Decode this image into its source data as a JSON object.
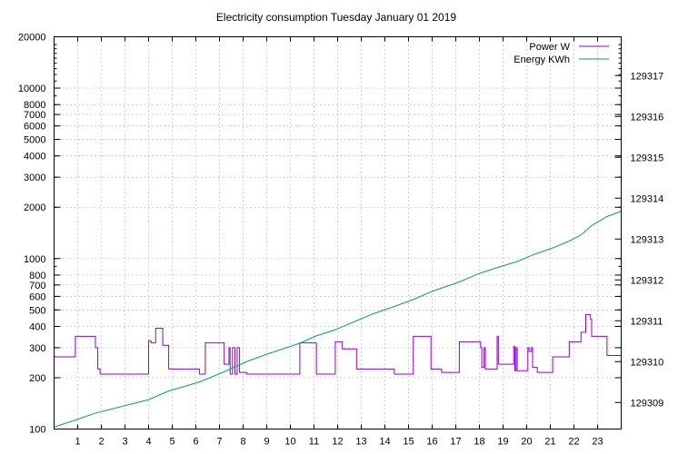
{
  "chart_data": {
    "type": "line",
    "title": "Electricity consumption Tuesday January 01 2019",
    "x": {
      "range": [
        0,
        24
      ],
      "tick_values": [
        1,
        2,
        3,
        4,
        5,
        6,
        7,
        8,
        9,
        10,
        11,
        12,
        13,
        14,
        15,
        16,
        17,
        18,
        19,
        20,
        21,
        22,
        23
      ],
      "tick_labels": [
        "1",
        "2",
        "3",
        "4",
        "5",
        "6",
        "7",
        "8",
        "9",
        "10",
        "11",
        "12",
        "13",
        "14",
        "15",
        "16",
        "17",
        "18",
        "19",
        "20",
        "21",
        "22",
        "23"
      ],
      "grid": true
    },
    "y_left": {
      "scale": "log",
      "range": [
        100,
        20000
      ],
      "tick_values": [
        100,
        200,
        300,
        400,
        500,
        600,
        700,
        800,
        1000,
        2000,
        3000,
        4000,
        5000,
        6000,
        7000,
        8000,
        10000,
        20000
      ],
      "tick_labels": [
        "100",
        "200",
        "300",
        "400",
        "500",
        "600",
        "700",
        "800",
        "1000",
        "2000",
        "3000",
        "4000",
        "5000",
        "6000",
        "7000",
        "8000",
        "10000",
        "20000"
      ],
      "grid": true
    },
    "y_right": {
      "scale": "linear",
      "range": [
        129308.35,
        129317.95
      ],
      "tick_values": [
        129309,
        129310,
        129311,
        129312,
        129313,
        129314,
        129315,
        129316,
        129317
      ],
      "tick_labels": [
        "129309",
        "129310",
        "129311",
        "129312",
        "129313",
        "129314",
        "129315",
        "129316",
        "129317"
      ]
    },
    "legend_position": "top-right",
    "series": [
      {
        "name": "Power W",
        "axis": "left",
        "color": "#9400d3",
        "style": "step",
        "points": [
          [
            0,
            270
          ],
          [
            0.05,
            265
          ],
          [
            0.9,
            265
          ],
          [
            0.9,
            350
          ],
          [
            1.75,
            350
          ],
          [
            1.75,
            300
          ],
          [
            1.85,
            300
          ],
          [
            1.85,
            225
          ],
          [
            1.95,
            225
          ],
          [
            1.95,
            210
          ],
          [
            4.0,
            210
          ],
          [
            4.0,
            330
          ],
          [
            4.1,
            330
          ],
          [
            4.1,
            320
          ],
          [
            4.3,
            320
          ],
          [
            4.3,
            390
          ],
          [
            4.6,
            390
          ],
          [
            4.6,
            310
          ],
          [
            4.85,
            310
          ],
          [
            4.85,
            225
          ],
          [
            6.15,
            225
          ],
          [
            6.15,
            210
          ],
          [
            6.4,
            210
          ],
          [
            6.4,
            320
          ],
          [
            7.2,
            320
          ],
          [
            7.2,
            240
          ],
          [
            7.4,
            240
          ],
          [
            7.4,
            300
          ],
          [
            7.45,
            300
          ],
          [
            7.45,
            210
          ],
          [
            7.55,
            210
          ],
          [
            7.55,
            300
          ],
          [
            7.65,
            300
          ],
          [
            7.65,
            210
          ],
          [
            7.75,
            210
          ],
          [
            7.75,
            300
          ],
          [
            7.85,
            300
          ],
          [
            7.85,
            215
          ],
          [
            8.15,
            215
          ],
          [
            8.15,
            210
          ],
          [
            10.4,
            210
          ],
          [
            10.4,
            320
          ],
          [
            11.1,
            320
          ],
          [
            11.1,
            210
          ],
          [
            11.9,
            210
          ],
          [
            11.9,
            325
          ],
          [
            12.2,
            325
          ],
          [
            12.2,
            295
          ],
          [
            12.8,
            295
          ],
          [
            12.8,
            225
          ],
          [
            14.4,
            225
          ],
          [
            14.4,
            210
          ],
          [
            15.2,
            210
          ],
          [
            15.2,
            350
          ],
          [
            15.95,
            350
          ],
          [
            15.95,
            225
          ],
          [
            16.4,
            225
          ],
          [
            16.4,
            215
          ],
          [
            17.15,
            215
          ],
          [
            17.15,
            325
          ],
          [
            18.05,
            325
          ],
          [
            18.05,
            300
          ],
          [
            18.1,
            300
          ],
          [
            18.1,
            230
          ],
          [
            18.2,
            230
          ],
          [
            18.2,
            300
          ],
          [
            18.25,
            300
          ],
          [
            18.25,
            225
          ],
          [
            18.75,
            225
          ],
          [
            18.75,
            350
          ],
          [
            18.8,
            350
          ],
          [
            18.8,
            240
          ],
          [
            19.45,
            240
          ],
          [
            19.45,
            305
          ],
          [
            19.5,
            305
          ],
          [
            19.5,
            220
          ],
          [
            19.55,
            220
          ],
          [
            19.55,
            300
          ],
          [
            19.6,
            300
          ],
          [
            19.6,
            220
          ],
          [
            20.05,
            220
          ],
          [
            20.05,
            300
          ],
          [
            20.1,
            300
          ],
          [
            20.1,
            285
          ],
          [
            20.2,
            285
          ],
          [
            20.2,
            300
          ],
          [
            20.25,
            300
          ],
          [
            20.25,
            230
          ],
          [
            20.45,
            230
          ],
          [
            20.45,
            215
          ],
          [
            21.1,
            215
          ],
          [
            21.1,
            265
          ],
          [
            21.8,
            265
          ],
          [
            21.8,
            325
          ],
          [
            22.3,
            325
          ],
          [
            22.3,
            370
          ],
          [
            22.5,
            370
          ],
          [
            22.5,
            470
          ],
          [
            22.7,
            470
          ],
          [
            22.7,
            440
          ],
          [
            22.75,
            440
          ],
          [
            22.75,
            350
          ],
          [
            23.4,
            350
          ],
          [
            23.4,
            270
          ],
          [
            24,
            270
          ]
        ]
      },
      {
        "name": "Energy KWh",
        "axis": "right",
        "color": "#009e73",
        "style": "line",
        "points": [
          [
            0,
            129308.4
          ],
          [
            0.9,
            129308.57
          ],
          [
            1.75,
            129308.74
          ],
          [
            2.5,
            129308.85
          ],
          [
            4.0,
            129309.07
          ],
          [
            4.85,
            129309.28
          ],
          [
            6.15,
            129309.5
          ],
          [
            7.2,
            129309.75
          ],
          [
            8.15,
            129310.0
          ],
          [
            9.0,
            129310.18
          ],
          [
            10.4,
            129310.45
          ],
          [
            11.1,
            129310.63
          ],
          [
            11.9,
            129310.78
          ],
          [
            12.8,
            129311.0
          ],
          [
            13.5,
            129311.17
          ],
          [
            14.4,
            129311.35
          ],
          [
            15.2,
            129311.52
          ],
          [
            16.0,
            129311.72
          ],
          [
            17.15,
            129311.95
          ],
          [
            18.05,
            129312.17
          ],
          [
            18.75,
            129312.3
          ],
          [
            19.6,
            129312.45
          ],
          [
            20.3,
            129312.62
          ],
          [
            21.1,
            129312.78
          ],
          [
            21.8,
            129312.95
          ],
          [
            22.3,
            129313.1
          ],
          [
            22.75,
            129313.33
          ],
          [
            23.4,
            129313.55
          ],
          [
            24,
            129313.68
          ]
        ]
      }
    ]
  }
}
